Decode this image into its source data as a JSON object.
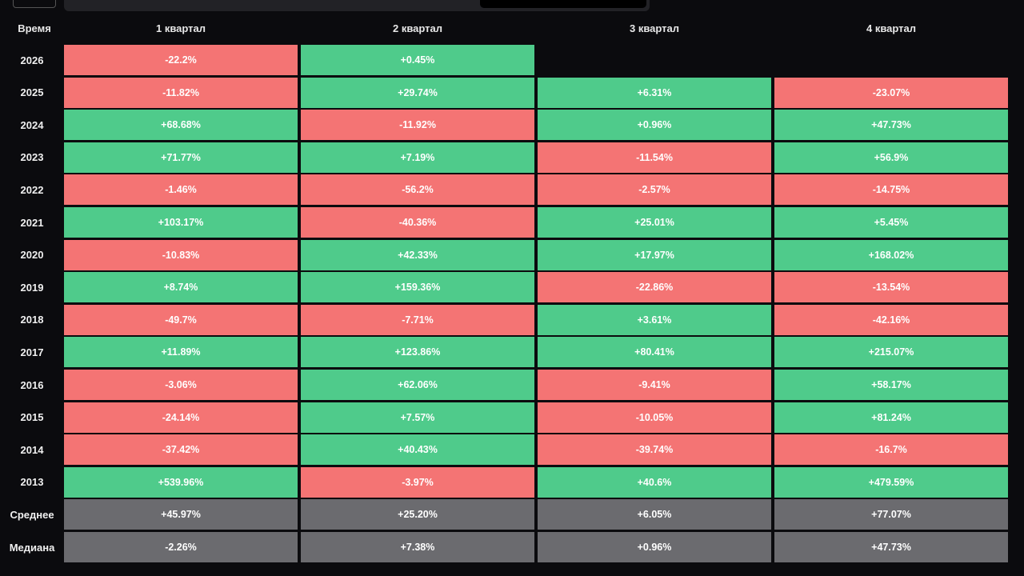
{
  "table": {
    "header": [
      "Время",
      "1 квартал",
      "2 квартал",
      "3 квартал",
      "4 квартал"
    ],
    "rows": [
      [
        "2026",
        "-22.2%",
        "+0.45%",
        null,
        null
      ],
      [
        "2025",
        "-11.82%",
        "+29.74%",
        "+6.31%",
        "-23.07%"
      ],
      [
        "2024",
        "+68.68%",
        "-11.92%",
        "+0.96%",
        "+47.73%"
      ],
      [
        "2023",
        "+71.77%",
        "+7.19%",
        "-11.54%",
        "+56.9%"
      ],
      [
        "2022",
        "-1.46%",
        "-56.2%",
        "-2.57%",
        "-14.75%"
      ],
      [
        "2021",
        "+103.17%",
        "-40.36%",
        "+25.01%",
        "+5.45%"
      ],
      [
        "2020",
        "-10.83%",
        "+42.33%",
        "+17.97%",
        "+168.02%"
      ],
      [
        "2019",
        "+8.74%",
        "+159.36%",
        "-22.86%",
        "-13.54%"
      ],
      [
        "2018",
        "-49.7%",
        "-7.71%",
        "+3.61%",
        "-42.16%"
      ],
      [
        "2017",
        "+11.89%",
        "+123.86%",
        "+80.41%",
        "+215.07%"
      ],
      [
        "2016",
        "-3.06%",
        "+62.06%",
        "-9.41%",
        "+58.17%"
      ],
      [
        "2015",
        "-24.14%",
        "+7.57%",
        "-10.05%",
        "+81.24%"
      ],
      [
        "2014",
        "-37.42%",
        "+40.43%",
        "-39.74%",
        "-16.7%"
      ],
      [
        "2013",
        "+539.96%",
        "-3.97%",
        "+40.6%",
        "+479.59%"
      ]
    ],
    "summary": [
      [
        "Среднее",
        "+45.97%",
        "+25.20%",
        "+6.05%",
        "+77.07%"
      ],
      [
        "Медиана",
        "-2.26%",
        "+7.38%",
        "+0.96%",
        "+47.73%"
      ]
    ]
  }
}
